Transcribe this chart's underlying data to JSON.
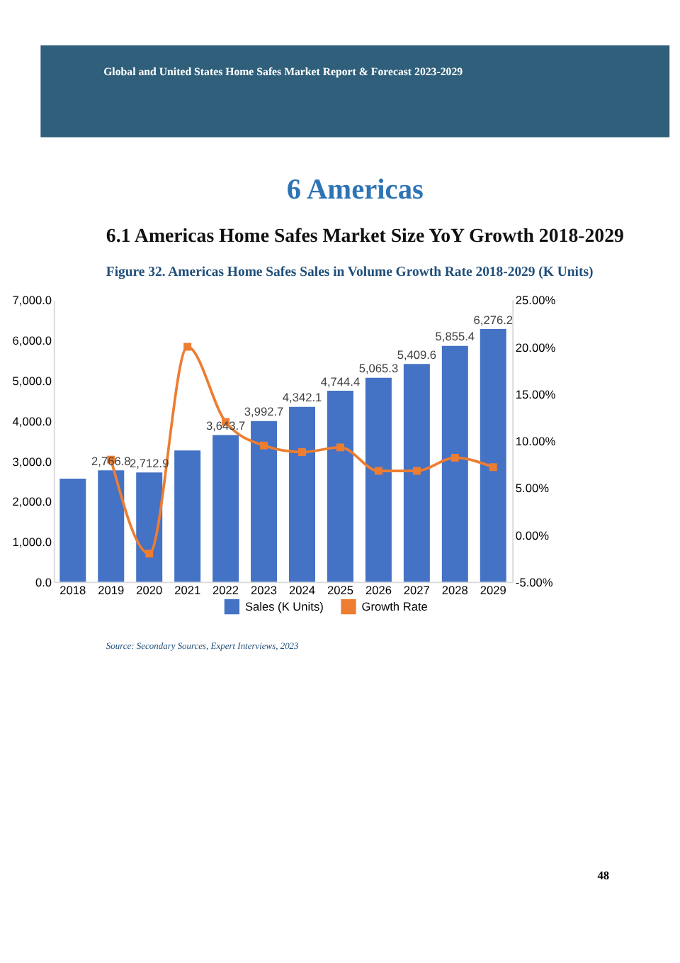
{
  "chart_data": {
    "type": "bar",
    "title": "Figure 32.   Americas Home Safes Sales in Volume Growth Rate 2018-2029 (K Units)",
    "annotations": [
      "Global and United States Home Safes Market Report & Forecast 2023-2029",
      "6  Americas",
      "6.1  Americas Home Safes Market Size YoY Growth 2018-2029",
      "Source: Secondary Sources, Expert Interviews, 2023",
      "48"
    ],
    "categories": [
      "2018",
      "2019",
      "2020",
      "2021",
      "2022",
      "2023",
      "2024",
      "2025",
      "2026",
      "2027",
      "2028",
      "2029"
    ],
    "series": [
      {
        "name": "Sales (K Units)",
        "color": "#4472c4",
        "values": [
          2560,
          2766.8,
          2712.9,
          3260,
          3643.7,
          3992.7,
          4342.1,
          4744.4,
          5065.3,
          5409.6,
          5855.4,
          6276.2
        ],
        "value_labels": [
          null,
          "2,766.8",
          "2,712.9",
          null,
          "3,643.7",
          "3,992.7",
          "4,342.1",
          "4,744.4",
          "5,065.3",
          "5,409.6",
          "5,855.4",
          "6,276.2"
        ]
      },
      {
        "name": "Growth Rate",
        "type": "line",
        "axis": "y2",
        "color": "#ed7d31",
        "marker": "square",
        "values": [
          null,
          8,
          -2,
          20,
          12,
          9.5,
          8.8,
          9.3,
          6.8,
          6.8,
          8.2,
          7.2
        ]
      }
    ],
    "ylim": [
      0,
      7000
    ],
    "yticks": [
      {
        "value": 0,
        "label": "0.0"
      },
      {
        "value": 1000,
        "label": "1,000.0"
      },
      {
        "value": 2000,
        "label": "2,000.0"
      },
      {
        "value": 3000,
        "label": "3,000.0"
      },
      {
        "value": 4000,
        "label": "4,000.0"
      },
      {
        "value": 5000,
        "label": "5,000.0"
      },
      {
        "value": 6000,
        "label": "6,000.0"
      },
      {
        "value": 7000,
        "label": "7,000.0"
      }
    ],
    "y2lim": [
      -5,
      25
    ],
    "y2ticks": [
      {
        "value": -5,
        "label": "-5.00%"
      },
      {
        "value": 0,
        "label": "0.00%"
      },
      {
        "value": 5,
        "label": "5.00%"
      },
      {
        "value": 10,
        "label": "10.00%"
      },
      {
        "value": 15,
        "label": "15.00%"
      },
      {
        "value": 20,
        "label": "20.00%"
      },
      {
        "value": 25,
        "label": "25.00%"
      }
    ],
    "grid": false,
    "legend": "bottom"
  }
}
